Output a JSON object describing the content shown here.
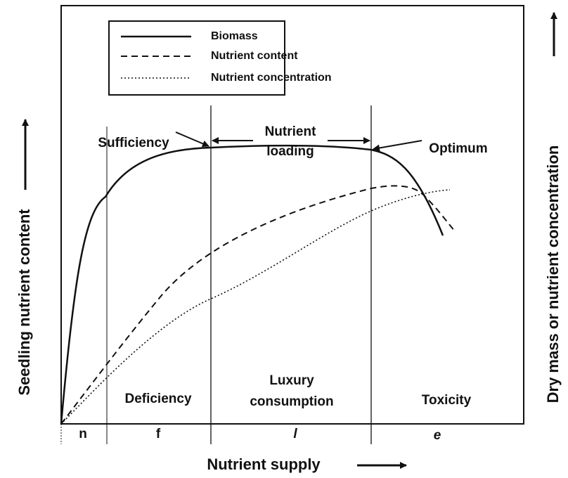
{
  "legend": [
    "Biomass",
    "Nutrient content",
    "Nutrient concentration"
  ],
  "annotations": {
    "sufficiency": "Sufficiency",
    "loading": [
      "Nutrient",
      "loading"
    ],
    "optimum": "Optimum"
  },
  "regions": {
    "deficiency": "Deficiency",
    "luxury": [
      "Luxury",
      "consumption"
    ],
    "toxicity": "Toxicity"
  },
  "phases": [
    "n",
    "f",
    "l",
    "e"
  ],
  "axes": {
    "x": "Nutrient supply",
    "y_left": "Seedling nutrient content",
    "y_right": "Dry mass or nutrient concentration"
  }
}
